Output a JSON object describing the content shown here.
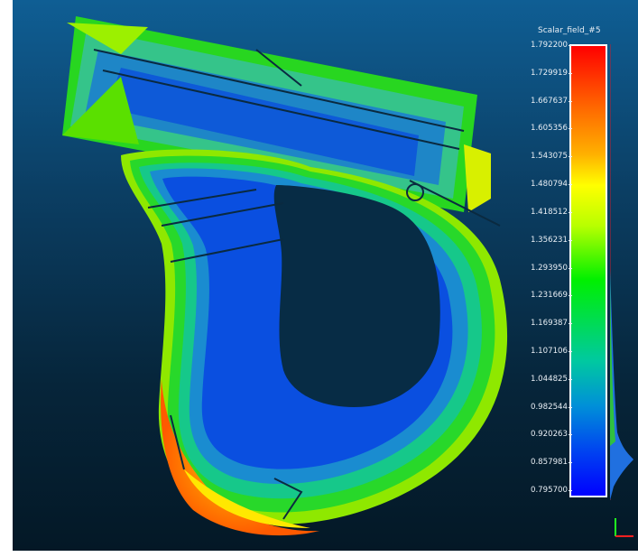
{
  "viewer": {
    "background_top": "#0f5e94",
    "background_bottom": "#041826"
  },
  "scalar_bar": {
    "title": "Scalar_field_#5",
    "ticks": [
      "1.792200",
      "1.729919",
      "1.667637",
      "1.605356",
      "1.543075",
      "1.480794",
      "1.418512",
      "1.356231",
      "1.293950",
      "1.231669",
      "1.169387",
      "1.107106",
      "1.044825",
      "0.982544",
      "0.920263",
      "0.857981",
      "0.795700"
    ],
    "min": 0.7957,
    "max": 1.7922,
    "color_low": "#0000ff",
    "color_mid": "#00f000",
    "color_high": "#ff0000"
  },
  "axes_icon": {
    "x_color": "#ff2020",
    "y_color": "#20ff20"
  }
}
